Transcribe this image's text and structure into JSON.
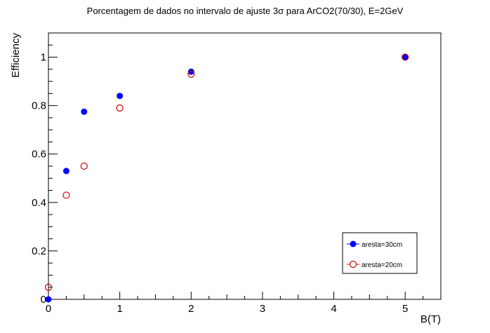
{
  "chart_data": {
    "type": "scatter",
    "title": "Porcentagem de dados no intervalo de ajuste 3σ  para ArCO2(70/30), E=2GeV",
    "xlabel": "B(T)",
    "ylabel": "Efficiency",
    "xlim": [
      0,
      5.5
    ],
    "ylim": [
      0,
      1.1
    ],
    "x_ticks": [
      0,
      1,
      2,
      3,
      4,
      5
    ],
    "y_ticks": [
      0,
      0.2,
      0.4,
      0.6,
      0.8,
      1
    ],
    "x_tick_labels": [
      "0",
      "1",
      "2",
      "3",
      "4",
      "5"
    ],
    "y_tick_labels": [
      "0",
      "0.2",
      "0.4",
      "0.6",
      "0.8",
      "1"
    ],
    "grid": false,
    "legend_position": "bottom-right",
    "series": [
      {
        "name": "aresta=30cm",
        "marker": "filled-circle",
        "color": "#0000ff",
        "x": [
          0,
          0.25,
          0.5,
          1,
          2,
          5
        ],
        "y": [
          0,
          0.53,
          0.775,
          0.84,
          0.94,
          1.0
        ]
      },
      {
        "name": "aresta=20cm",
        "marker": "open-circle",
        "color": "#cc0000",
        "x": [
          0,
          0.25,
          0.5,
          1,
          2,
          5
        ],
        "y": [
          0.05,
          0.43,
          0.55,
          0.79,
          0.93,
          1.0
        ]
      }
    ]
  }
}
